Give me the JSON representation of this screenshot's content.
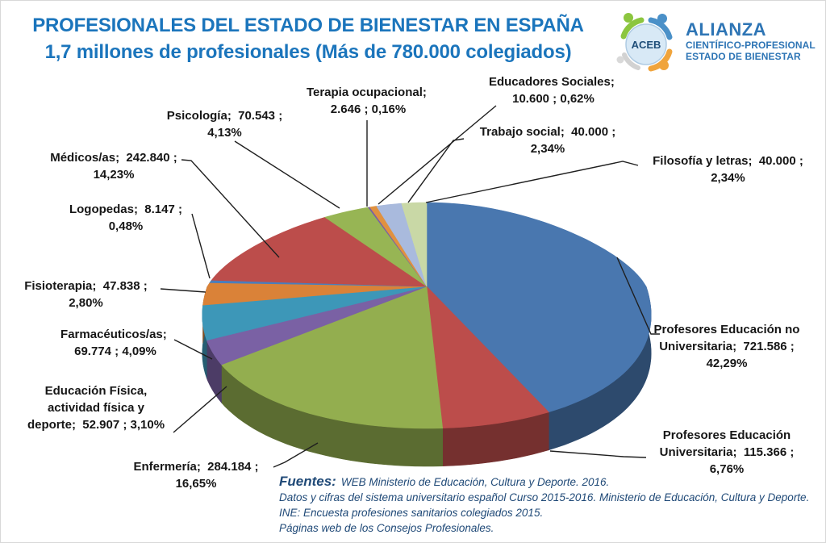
{
  "title": {
    "line1": "PROFESIONALES DEL ESTADO DE BIENESTAR EN ESPAÑA",
    "line2": "1,7 millones de profesionales (Más de 780.000 colegiados)",
    "color": "#1B75BC"
  },
  "logo": {
    "badge_text": "ACEB",
    "name": "ALIANZA",
    "subtitle1": "CIENTÍFICO-PROFESIONAL",
    "subtitle2": "ESTADO DE BIENESTAR",
    "text_color": "#2E75B5",
    "badge_fill": "#D8E9F6",
    "figure_colors": {
      "green": "#8CC63F",
      "blue": "#4A90C8",
      "orange": "#F0A43C",
      "grey": "#D2D2D2"
    }
  },
  "chart_data": {
    "type": "pie",
    "style": "3d",
    "start_angle_deg": 0,
    "direction": "clockwise",
    "title": "PROFESIONALES DEL ESTADO DE BIENESTAR EN ESPAÑA",
    "units": "professionals",
    "slices": [
      {
        "key": "profesores-educacion-no-universitaria",
        "label": "Profesores Educación no Universitaria",
        "value": 721586,
        "value_text": "721.586",
        "pct": 42.29,
        "pct_text": "42,29%",
        "color": "#4977AF"
      },
      {
        "key": "profesores-educacion-universitaria",
        "label": "Profesores Educación Universitaria",
        "value": 115366,
        "value_text": "115.366",
        "pct": 6.76,
        "pct_text": "6,76%",
        "color": "#BC4D4B"
      },
      {
        "key": "enfermeria",
        "label": "Enfermería",
        "value": 284184,
        "value_text": "284.184",
        "pct": 16.65,
        "pct_text": "16,65%",
        "color": "#93AE4F"
      },
      {
        "key": "educacion-fisica",
        "label": "Educación Física, actividad física y deporte",
        "value": 52907,
        "value_text": "52.907",
        "pct": 3.1,
        "pct_text": "3,10%",
        "color": "#7A61A4"
      },
      {
        "key": "farmaceuticos",
        "label": "Farmacéuticos/as",
        "value": 69774,
        "value_text": "69.774",
        "pct": 4.09,
        "pct_text": "4,09%",
        "color": "#3D97B8"
      },
      {
        "key": "fisioterapia",
        "label": "Fisioterapia",
        "value": 47838,
        "value_text": "47.838",
        "pct": 2.8,
        "pct_text": "2,80%",
        "color": "#DA8238"
      },
      {
        "key": "logopedas",
        "label": "Logopedas",
        "value": 8147,
        "value_text": "8.147",
        "pct": 0.48,
        "pct_text": "0,48%",
        "color": "#4A7EBC"
      },
      {
        "key": "medicos",
        "label": "Médicos/as",
        "value": 242840,
        "value_text": "242.840",
        "pct": 14.23,
        "pct_text": "14,23%",
        "color": "#BC4D4B"
      },
      {
        "key": "psicologia",
        "label": "Psicología",
        "value": 70543,
        "value_text": "70.543",
        "pct": 4.13,
        "pct_text": "4,13%",
        "color": "#97B554"
      },
      {
        "key": "terapia-ocupacional",
        "label": "Terapia ocupacional",
        "value": 2646,
        "value_text": "2.646",
        "pct": 0.16,
        "pct_text": "0,16%",
        "color": "#7A61A4"
      },
      {
        "key": "educadores-sociales",
        "label": "Educadores Sociales",
        "value": 10600,
        "value_text": "10.600",
        "pct": 0.62,
        "pct_text": "0,62%",
        "color": "#E0913F"
      },
      {
        "key": "trabajo-social",
        "label": "Trabajo social",
        "value": 40000,
        "value_text": "40.000",
        "pct": 2.34,
        "pct_text": "2,34%",
        "color": "#A9BADD"
      },
      {
        "key": "filosofia-y-letras",
        "label": "Filosofía y letras",
        "value": 40000,
        "value_text": "40.000",
        "pct": 2.34,
        "pct_text": "2,34%",
        "color": "#C9D8A6"
      }
    ]
  },
  "sources": {
    "label": "Fuentes:",
    "color": "#1F4977",
    "lines": [
      "WEB Ministerio de Educación, Cultura y Deporte. 2016.",
      "Datos y cifras del sistema universitario español Curso 2015-2016. Ministerio de Educación, Cultura y Deporte.",
      "INE: Encuesta profesiones sanitarios colegiados 2015.",
      "Páginas web de los Consejos Profesionales."
    ]
  }
}
